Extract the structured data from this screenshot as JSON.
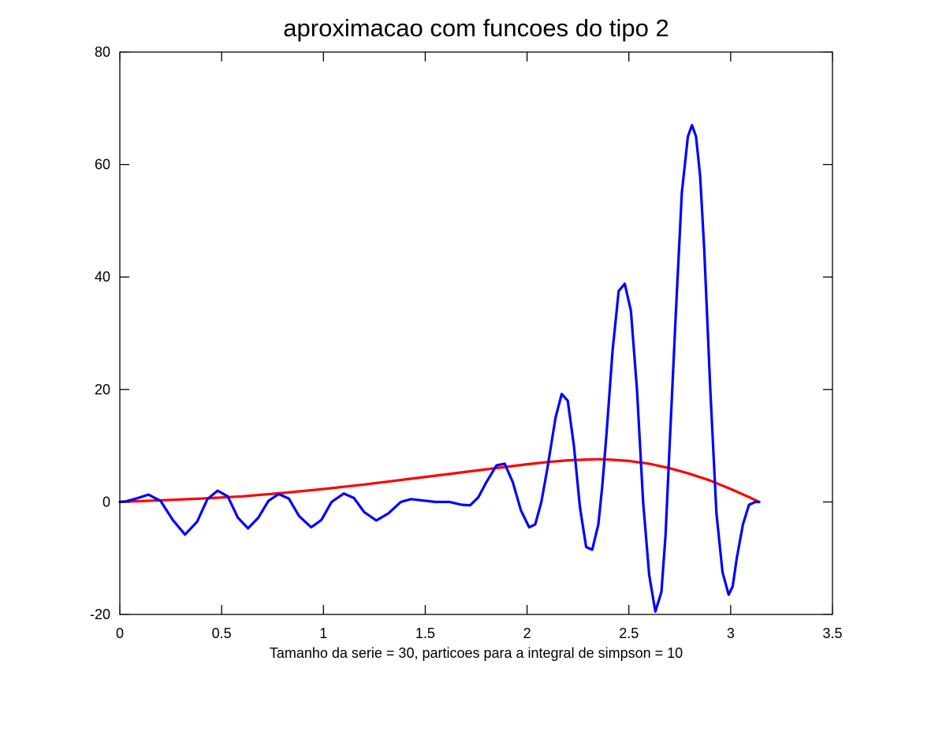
{
  "chart_data": {
    "type": "line",
    "title": "aproximacao com funcoes do tipo 2",
    "xlabel": "Tamanho da serie = 30, particoes para a integral de simpson = 10",
    "ylabel": "",
    "xlim": [
      0,
      3.5
    ],
    "ylim": [
      -20,
      80
    ],
    "x_ticks": [
      0,
      0.5,
      1,
      1.5,
      2,
      2.5,
      3,
      3.5
    ],
    "x_tick_labels": [
      "0",
      "0.5",
      "1",
      "1.5",
      "2",
      "2.5",
      "3",
      "3.5"
    ],
    "y_ticks": [
      -20,
      0,
      20,
      40,
      60,
      80
    ],
    "y_tick_labels": [
      "-20",
      "0",
      "20",
      "40",
      "60",
      "80"
    ],
    "grid": false,
    "legend": "none",
    "series": [
      {
        "color": "#ff0000",
        "x": [
          0,
          0.2,
          0.4,
          0.6,
          0.8,
          1.0,
          1.2,
          1.4,
          1.6,
          1.8,
          2.0,
          2.1,
          2.2,
          2.3,
          2.35,
          2.4,
          2.5,
          2.6,
          2.7,
          2.8,
          2.9,
          3.0,
          3.1,
          3.14
        ],
        "y": [
          0,
          0.3,
          0.6,
          1.0,
          1.6,
          2.3,
          3.1,
          4.0,
          4.9,
          5.8,
          6.7,
          7.1,
          7.4,
          7.55,
          7.6,
          7.55,
          7.3,
          6.8,
          6.0,
          5.0,
          3.8,
          2.3,
          0.7,
          0
        ]
      },
      {
        "color": "#0000ff",
        "x": [
          0,
          0.03,
          0.08,
          0.14,
          0.2,
          0.26,
          0.32,
          0.38,
          0.43,
          0.48,
          0.53,
          0.58,
          0.63,
          0.68,
          0.73,
          0.78,
          0.83,
          0.88,
          0.94,
          0.99,
          1.04,
          1.1,
          1.15,
          1.2,
          1.26,
          1.32,
          1.38,
          1.43,
          1.48,
          1.55,
          1.62,
          1.68,
          1.72,
          1.76,
          1.8,
          1.85,
          1.89,
          1.93,
          1.97,
          2.01,
          2.04,
          2.07,
          2.1,
          2.14,
          2.17,
          2.2,
          2.23,
          2.26,
          2.29,
          2.32,
          2.35,
          2.37,
          2.39,
          2.42,
          2.45,
          2.48,
          2.51,
          2.54,
          2.57,
          2.6,
          2.63,
          2.66,
          2.68,
          2.7,
          2.73,
          2.76,
          2.79,
          2.81,
          2.83,
          2.85,
          2.87,
          2.9,
          2.93,
          2.96,
          2.99,
          3.01,
          3.03,
          3.06,
          3.09,
          3.12,
          3.14
        ],
        "y": [
          0,
          0.1,
          0.6,
          1.3,
          0.2,
          -3.2,
          -5.8,
          -3.5,
          0.5,
          2.0,
          1.0,
          -2.8,
          -4.7,
          -2.8,
          0.2,
          1.4,
          0.6,
          -2.5,
          -4.5,
          -3.2,
          0.0,
          1.5,
          0.7,
          -1.8,
          -3.3,
          -2.0,
          0.0,
          0.5,
          0.3,
          0.0,
          0.0,
          -0.5,
          -0.6,
          0.8,
          3.5,
          6.5,
          6.8,
          3.5,
          -1.5,
          -4.5,
          -4.0,
          0.0,
          6.0,
          15.0,
          19.2,
          18.0,
          10.0,
          -1.0,
          -8.0,
          -8.5,
          -4.0,
          3.0,
          12.0,
          27.0,
          37.5,
          38.8,
          34.0,
          20.0,
          0.0,
          -13.0,
          -19.5,
          -16.0,
          -6.0,
          10.0,
          33.0,
          55.0,
          65.0,
          67.0,
          65.0,
          58.0,
          45.0,
          20.0,
          -2.0,
          -12.5,
          -16.5,
          -15.0,
          -10.0,
          -4.0,
          -0.5,
          0.0,
          0.0
        ]
      }
    ]
  }
}
